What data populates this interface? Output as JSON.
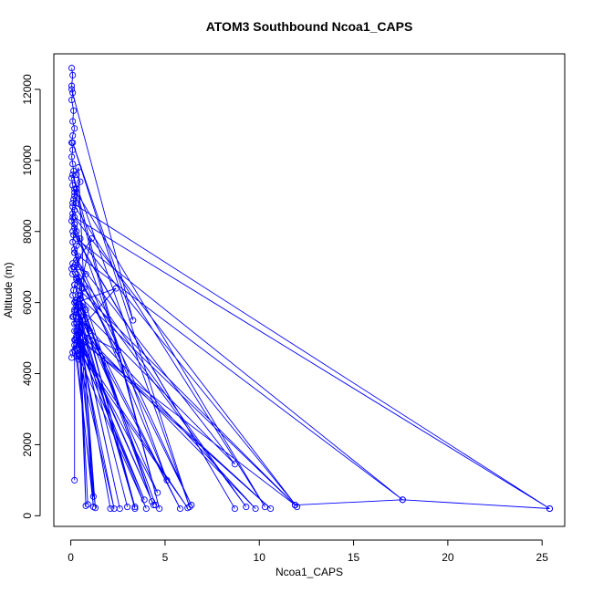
{
  "colors": {
    "series": "#0000ff",
    "axis": "#000000",
    "background": "#ffffff"
  },
  "chart_data": {
    "type": "line",
    "markers": "open-circle",
    "title": "ATOM3 Southbound Ncoa1_CAPS",
    "xlabel": "Ncoa1_CAPS",
    "ylabel": "Altitude (m)",
    "xlim": [
      -0.9,
      26.2
    ],
    "ylim": [
      -300,
      13000
    ],
    "xticks": [
      0,
      5,
      10,
      15,
      20,
      25
    ],
    "yticks": [
      0,
      2000,
      4000,
      6000,
      8000,
      10000,
      12000
    ],
    "grid": false,
    "legend": "none",
    "series": [
      {
        "x": [
          0.05,
          0.1,
          0.05,
          0.1,
          0.05,
          0.15,
          0.1,
          0.2,
          0.1,
          0.05,
          0.1,
          0.05,
          0.1,
          0.15,
          0.05,
          0.1,
          0.2,
          0.15,
          0.1,
          0.1,
          0.05,
          0.2,
          0.15,
          0.1,
          0.2,
          0.4,
          0.1,
          0.05,
          0.1,
          0.3,
          0.2,
          0.15,
          0.1,
          0.25,
          0.3,
          0.2,
          0.15,
          0.3,
          0.5,
          0.4,
          0.3,
          0.25,
          0.5,
          0.4,
          0.3,
          0.2,
          0.3,
          0.1,
          0.2,
          0.3,
          0.5,
          0.6,
          0.4,
          0.8,
          0.4,
          0.3,
          0.2,
          0.3,
          0.5,
          0.3,
          0.2,
          0.1,
          0.2,
          0.3,
          0.2,
          0.3,
          0.5,
          0.3,
          0.4,
          0.7,
          0.5,
          0.8,
          0.6,
          1.0,
          0.8,
          0.6,
          0.5,
          0.4,
          0.3,
          0.2,
          0.3,
          0.2,
          0.1,
          0.05
        ],
        "y": [
          12600,
          12400,
          12100,
          11900,
          11700,
          11400,
          11100,
          10900,
          10700,
          10500,
          10300,
          10100,
          9900,
          9700,
          9500,
          9300,
          9100,
          8900,
          8700,
          8500,
          8300,
          8100,
          7900,
          7700,
          7500,
          7300,
          7100,
          6950,
          6800,
          6650,
          6500,
          6350,
          6200,
          6050,
          5900,
          5750,
          5600,
          5450,
          5300,
          5150,
          5050,
          4950,
          4850,
          4750,
          5000,
          5200,
          5400,
          5600,
          5800,
          6000,
          6200,
          6400,
          6600,
          6800,
          7000,
          7200,
          7400,
          7600,
          7800,
          8000,
          8200,
          8400,
          8600,
          8800,
          9000,
          9200,
          9400,
          9600,
          9800,
          6400,
          6100,
          5800,
          5500,
          5200,
          4900,
          4700,
          4550,
          4400,
          4500,
          4650,
          4800,
          4950,
          4600,
          4450
        ]
      },
      {
        "x": [
          0.05,
          3.3,
          0.1,
          6.3,
          0.1,
          4.7,
          0.2,
          10.3,
          0.1,
          25.4,
          0.2,
          12.0,
          0.1,
          8.7,
          0.3,
          17.6,
          0.2,
          6.4,
          0.2,
          9.3,
          0.3,
          4.3,
          0.2,
          11.9,
          0.4,
          3.4,
          0.3,
          5.8,
          0.3,
          2.6,
          0.4,
          9.8,
          0.2,
          4.4,
          0.3,
          10.6,
          0.5,
          2.1,
          0.5,
          3.9,
          0.4,
          6.2,
          0.3,
          1.2,
          0.6,
          4.0,
          0.4,
          2.3,
          0.4,
          1.3,
          0.6,
          3.0,
          0.5,
          0.8,
          0.4,
          3.4,
          0.6,
          4.5,
          0.5,
          1.2,
          0.2,
          0.2
        ],
        "y": [
          12000,
          5500,
          10500,
          250,
          9600,
          200,
          9200,
          250,
          8800,
          200,
          8400,
          250,
          8000,
          200,
          7800,
          450,
          7400,
          300,
          7000,
          250,
          6700,
          400,
          6500,
          300,
          6200,
          250,
          6000,
          200,
          5800,
          200,
          5600,
          200,
          5400,
          300,
          5200,
          200,
          5000,
          200,
          4900,
          450,
          4800,
          220,
          4700,
          250,
          4600,
          200,
          4500,
          200,
          5100,
          220,
          5300,
          250,
          5500,
          280,
          5700,
          200,
          5900,
          300,
          6100,
          540,
          4800,
          1000
        ]
      },
      {
        "x": [
          0.2,
          5.1,
          0.3,
          8.7,
          0.2,
          4.6,
          0.3,
          11.9,
          17.6,
          25.4
        ],
        "y": [
          8200,
          1000,
          7200,
          1450,
          6000,
          650,
          5000,
          300,
          450,
          200
        ]
      },
      {
        "x": [
          0.15,
          1.1,
          0.3,
          2.4,
          0.4,
          2.5,
          0.3,
          0.9
        ],
        "y": [
          7000,
          7800,
          6000,
          6400,
          5200,
          4650,
          6800,
          320
        ]
      }
    ]
  }
}
